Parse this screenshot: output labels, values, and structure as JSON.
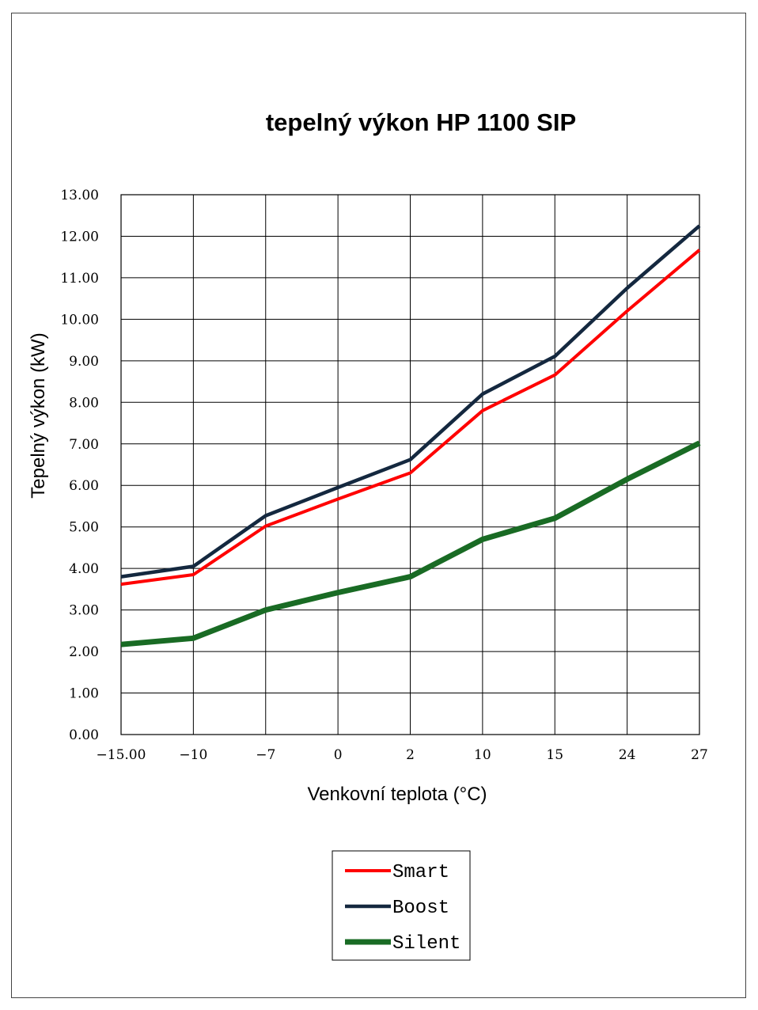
{
  "chart_data": {
    "type": "line",
    "title": "tepelný výkon HP 1100 SIP",
    "xlabel": "Venkovní teplota (°C)",
    "ylabel": "Tepelný výkon (kW)",
    "categories": [
      "-15.00",
      "-10",
      "-7",
      "0",
      "2",
      "10",
      "15",
      "24",
      "27"
    ],
    "ylim": [
      0,
      13
    ],
    "yticks": [
      "0.00",
      "1.00",
      "2.00",
      "3.00",
      "4.00",
      "5.00",
      "6.00",
      "7.00",
      "8.00",
      "9.00",
      "10.00",
      "11.00",
      "12.00",
      "13.00"
    ],
    "grid": true,
    "legend_position": "bottom-center",
    "series": [
      {
        "name": "Smart",
        "color": "#ff0000",
        "values": [
          3.62,
          3.85,
          5.02,
          5.67,
          6.3,
          7.8,
          8.66,
          10.2,
          11.67
        ]
      },
      {
        "name": "Boost",
        "color": "#14283f",
        "values": [
          3.8,
          4.05,
          5.27,
          5.95,
          6.62,
          8.2,
          9.11,
          10.75,
          12.25
        ]
      },
      {
        "name": "Silent",
        "color": "#196b24",
        "values": [
          2.17,
          2.32,
          3.0,
          3.42,
          3.8,
          4.7,
          5.21,
          6.15,
          7.02
        ]
      }
    ]
  }
}
